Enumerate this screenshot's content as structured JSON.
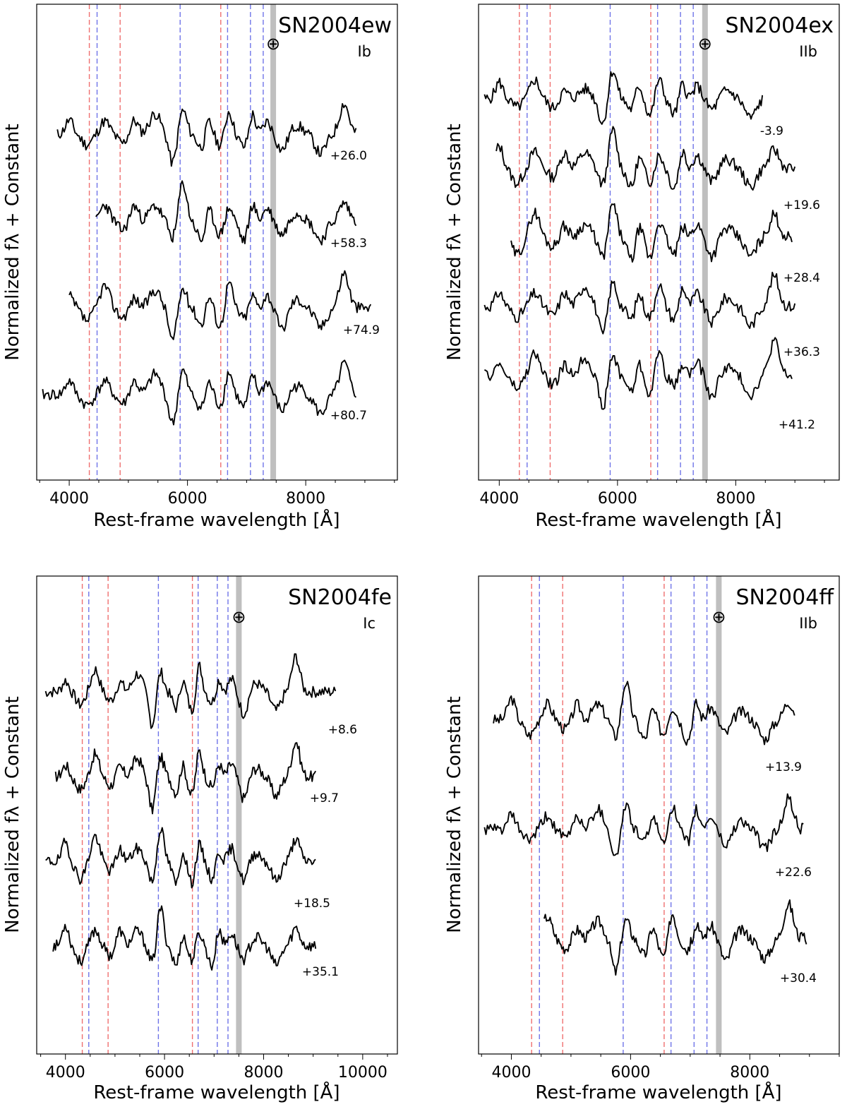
{
  "chart_data": [
    {
      "type": "line",
      "title": "SN2004ew",
      "sn_type": "Ib",
      "telluric_symbol": "⊕",
      "telluric_wavelength": 7450,
      "xlabel": "Rest-frame wavelength [Å]",
      "ylabel": "Normalized fλ + Constant",
      "xlim": [
        3450,
        9550
      ],
      "xticks": [
        4000,
        6000,
        8000
      ],
      "xtick_labels": [
        "4000",
        "6000",
        "8000"
      ],
      "red_lines": [
        4340,
        4861,
        6563
      ],
      "blue_lines": [
        4471,
        5876,
        6678,
        7065,
        7281
      ],
      "series": [
        {
          "name": "+26.0",
          "wmin": 3800,
          "wmax": 8850,
          "offset": 0,
          "seed": 11
        },
        {
          "name": "+58.3",
          "wmin": 4450,
          "wmax": 8850,
          "offset": 1,
          "seed": 23
        },
        {
          "name": "+74.9",
          "wmin": 4000,
          "wmax": 9100,
          "offset": 2,
          "seed": 37
        },
        {
          "name": "+80.7",
          "wmin": 3550,
          "wmax": 8850,
          "offset": 3,
          "seed": 41
        }
      ]
    },
    {
      "type": "line",
      "title": "SN2004ex",
      "sn_type": "IIb",
      "telluric_symbol": "⊕",
      "telluric_wavelength": 7480,
      "xlabel": "Rest-frame wavelength [Å]",
      "ylabel": "Normalized fλ + Constant",
      "xlim": [
        3650,
        9750
      ],
      "xticks": [
        4000,
        6000,
        8000
      ],
      "xtick_labels": [
        "4000",
        "6000",
        "8000"
      ],
      "red_lines": [
        4340,
        4861,
        6563
      ],
      "blue_lines": [
        4471,
        5876,
        6678,
        7065,
        7281
      ],
      "series": [
        {
          "name": "-3.9",
          "wmin": 3750,
          "wmax": 8450,
          "offset": 0,
          "seed": 5
        },
        {
          "name": "+19.6",
          "wmin": 3950,
          "wmax": 9000,
          "offset": 1,
          "seed": 13
        },
        {
          "name": "+28.4",
          "wmin": 4200,
          "wmax": 8950,
          "offset": 2,
          "seed": 29
        },
        {
          "name": "+36.3",
          "wmin": 3750,
          "wmax": 9000,
          "offset": 3,
          "seed": 31
        },
        {
          "name": "+41.2",
          "wmin": 3750,
          "wmax": 8950,
          "offset": 4,
          "seed": 47
        }
      ]
    },
    {
      "type": "line",
      "title": "SN2004fe",
      "sn_type": "Ic",
      "telluric_symbol": "⊕",
      "telluric_wavelength": 7500,
      "xlabel": "Rest-frame wavelength [Å]",
      "ylabel": "Normalized fλ + Constant",
      "xlim": [
        3420,
        10700
      ],
      "xticks": [
        4000,
        6000,
        8000,
        10000
      ],
      "xtick_labels": [
        "4000",
        "6000",
        "8000",
        "10000"
      ],
      "red_lines": [
        4340,
        4861,
        6563
      ],
      "blue_lines": [
        4471,
        5876,
        6678,
        7065,
        7281
      ],
      "series": [
        {
          "name": "+8.6",
          "wmin": 3600,
          "wmax": 9450,
          "offset": 0,
          "seed": 7
        },
        {
          "name": "+9.7",
          "wmin": 3800,
          "wmax": 9050,
          "offset": 1,
          "seed": 17
        },
        {
          "name": "+18.5",
          "wmin": 3600,
          "wmax": 9050,
          "offset": 2,
          "seed": 19
        },
        {
          "name": "+35.1",
          "wmin": 3750,
          "wmax": 9050,
          "offset": 3,
          "seed": 53
        }
      ]
    },
    {
      "type": "line",
      "title": "SN2004ff",
      "sn_type": "IIb",
      "telluric_symbol": "⊕",
      "telluric_wavelength": 7480,
      "xlabel": "Rest-frame wavelength [Å]",
      "ylabel": "Normalized fλ + Constant",
      "xlim": [
        3450,
        9500
      ],
      "xticks": [
        4000,
        6000,
        8000
      ],
      "xtick_labels": [
        "4000",
        "6000",
        "8000"
      ],
      "red_lines": [
        4340,
        4861,
        6563
      ],
      "blue_lines": [
        4471,
        5876,
        6678,
        7065,
        7281
      ],
      "series": [
        {
          "name": "+13.9",
          "wmin": 3700,
          "wmax": 8750,
          "offset": 0,
          "seed": 3
        },
        {
          "name": "+22.6",
          "wmin": 3550,
          "wmax": 8900,
          "offset": 1,
          "seed": 61
        },
        {
          "name": "+30.4",
          "wmin": 4550,
          "wmax": 8950,
          "offset": 2,
          "seed": 67
        }
      ]
    }
  ],
  "colors": {
    "hydrogen_lines": "#ef6f6f",
    "helium_lines": "#6f74e8",
    "telluric_band": "#bfbfbf",
    "spectrum": "#000000"
  }
}
